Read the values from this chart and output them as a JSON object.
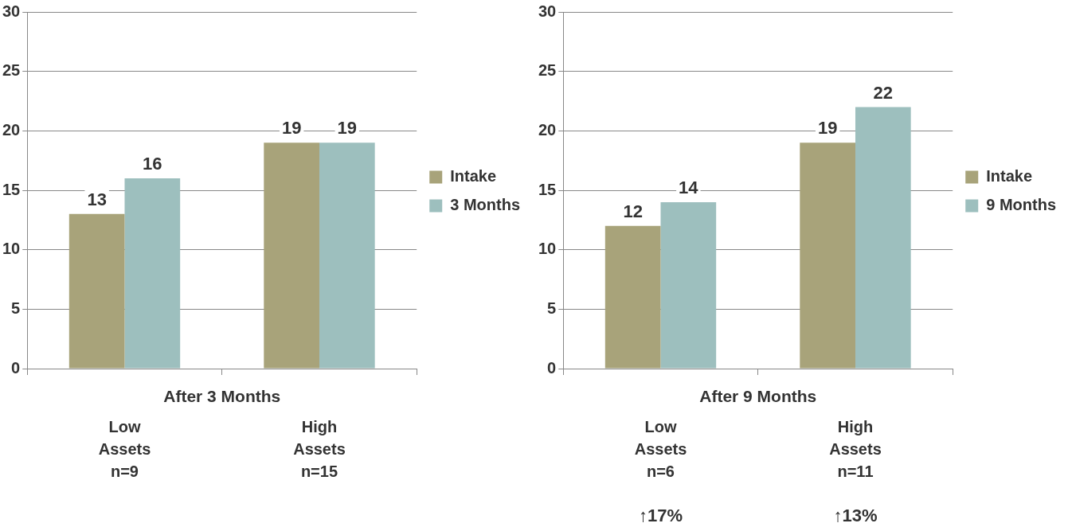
{
  "chart_data": [
    {
      "type": "bar",
      "xlabel": "After 3 Months",
      "categories": [
        "Low Assets n=9",
        "High Assets n=15"
      ],
      "series": [
        {
          "name": "Intake",
          "color": "#a8a37a",
          "values": [
            13,
            19
          ]
        },
        {
          "name": "3 Months",
          "color": "#9dbfbe",
          "values": [
            16,
            19
          ]
        }
      ],
      "ylim": [
        0,
        30
      ],
      "yticks": [
        0,
        5,
        10,
        15,
        20,
        25,
        30
      ],
      "grid": "y",
      "legend": "right",
      "data_labels": true
    },
    {
      "type": "bar",
      "xlabel": "After 9 Months",
      "categories": [
        "Low Assets n=6",
        "High Assets n=11"
      ],
      "series": [
        {
          "name": "Intake",
          "color": "#a8a37a",
          "values": [
            12,
            19
          ]
        },
        {
          "name": "9 Months",
          "color": "#9dbfbe",
          "values": [
            14,
            22
          ]
        }
      ],
      "ylim": [
        0,
        30
      ],
      "yticks": [
        0,
        5,
        10,
        15,
        20,
        25,
        30
      ],
      "grid": "y",
      "legend": "right",
      "data_labels": true,
      "annotations": [
        "↑17%",
        "↑13%"
      ]
    }
  ]
}
